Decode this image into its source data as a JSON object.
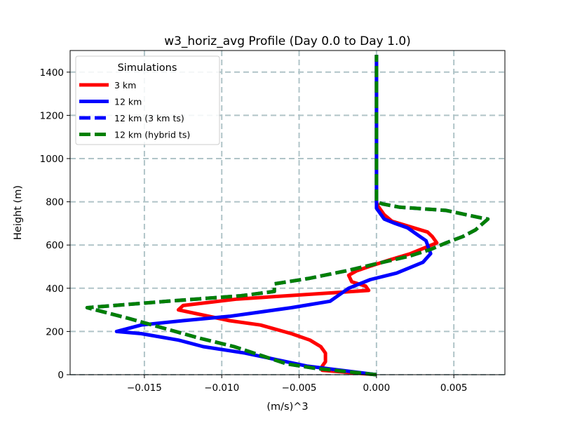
{
  "chart_data": {
    "type": "line",
    "title": "w3_horiz_avg Profile (Day 0.0 to Day 1.0)",
    "xlabel": "(m/s)^3",
    "ylabel": "Height (m)",
    "xlim": [
      -0.0198,
      0.0083
    ],
    "ylim": [
      0,
      1500
    ],
    "xticks": [
      -0.015,
      -0.01,
      -0.005,
      0.0,
      0.005
    ],
    "xtick_labels": [
      "−0.015",
      "−0.010",
      "−0.005",
      "0.000",
      "0.005"
    ],
    "yticks": [
      0,
      200,
      400,
      600,
      800,
      1000,
      1200,
      1400
    ],
    "ytick_labels": [
      "0",
      "200",
      "400",
      "600",
      "800",
      "1000",
      "1200",
      "1400"
    ],
    "grid": true,
    "legend": {
      "title": "Simulations",
      "placement": "top-left"
    },
    "series": [
      {
        "name": "3 km",
        "color": "#ff0000",
        "dash": "solid",
        "x": [
          0.0,
          -0.0035,
          -0.0035,
          -0.0033,
          -0.0033,
          -0.0036,
          -0.0043,
          -0.0055,
          -0.0075,
          -0.0095,
          -0.0128,
          -0.0125,
          -0.009,
          -0.0005,
          -0.0007,
          -0.0016,
          -0.0018,
          -0.0013,
          -0.0005,
          0.0008,
          0.0022,
          0.0039,
          0.0036,
          0.0033,
          0.001,
          0.0005,
          0.0001,
          0.0,
          0.0
        ],
        "y": [
          0,
          20,
          40,
          60,
          100,
          130,
          160,
          190,
          230,
          250,
          300,
          320,
          350,
          390,
          410,
          430,
          460,
          480,
          500,
          530,
          560,
          610,
          640,
          660,
          710,
          740,
          780,
          800,
          1480
        ]
      },
      {
        "name": "12 km",
        "color": "#0000ff",
        "dash": "solid",
        "x": [
          0.0,
          -0.0045,
          -0.0065,
          -0.0085,
          -0.0112,
          -0.0128,
          -0.0152,
          -0.0168,
          -0.0152,
          -0.0125,
          -0.0095,
          -0.0055,
          -0.003,
          -0.0022,
          -0.0018,
          -0.0004,
          0.0013,
          0.003,
          0.0035,
          0.0032,
          0.0028,
          0.002,
          0.0012,
          0.0005,
          0.0,
          0.0,
          0.0
        ],
        "y": [
          0,
          40,
          70,
          100,
          130,
          160,
          190,
          200,
          230,
          250,
          270,
          310,
          340,
          380,
          400,
          440,
          470,
          520,
          560,
          620,
          640,
          680,
          700,
          720,
          770,
          800,
          1480
        ]
      },
      {
        "name": "12 km (3 km ts)",
        "color": "#0000ff",
        "dash": "dashed",
        "x": [
          0.0,
          -0.004,
          -0.0058,
          -0.0075,
          -0.0092,
          -0.0115,
          -0.0135,
          -0.016,
          -0.0187,
          -0.0135,
          -0.0088,
          -0.0066,
          -0.0066,
          -0.0066,
          -0.0044,
          -0.002,
          0.0004,
          0.0022,
          0.0035,
          0.0045,
          0.0056,
          0.0064,
          0.0072,
          0.0068,
          0.0045,
          0.0015,
          0.0004,
          0.0,
          0.0
        ],
        "y": [
          0,
          30,
          50,
          90,
          130,
          170,
          210,
          260,
          310,
          340,
          365,
          385,
          400,
          420,
          445,
          480,
          520,
          550,
          580,
          610,
          640,
          670,
          720,
          725,
          760,
          775,
          790,
          800,
          1480
        ]
      },
      {
        "name": "12 km (hybrid ts)",
        "color": "#008000",
        "dash": "dashed",
        "x": [
          0.0,
          -0.004,
          -0.0058,
          -0.0075,
          -0.0092,
          -0.0115,
          -0.0135,
          -0.016,
          -0.0187,
          -0.0135,
          -0.0088,
          -0.0066,
          -0.0066,
          -0.0066,
          -0.0044,
          -0.002,
          0.0004,
          0.0022,
          0.0035,
          0.0045,
          0.0056,
          0.0064,
          0.0072,
          0.0068,
          0.0045,
          0.0015,
          0.0004,
          0.0,
          0.0
        ],
        "y": [
          0,
          30,
          50,
          90,
          130,
          170,
          210,
          260,
          310,
          340,
          365,
          385,
          400,
          420,
          445,
          480,
          520,
          550,
          580,
          610,
          640,
          670,
          720,
          725,
          760,
          775,
          790,
          800,
          1480
        ]
      }
    ]
  }
}
